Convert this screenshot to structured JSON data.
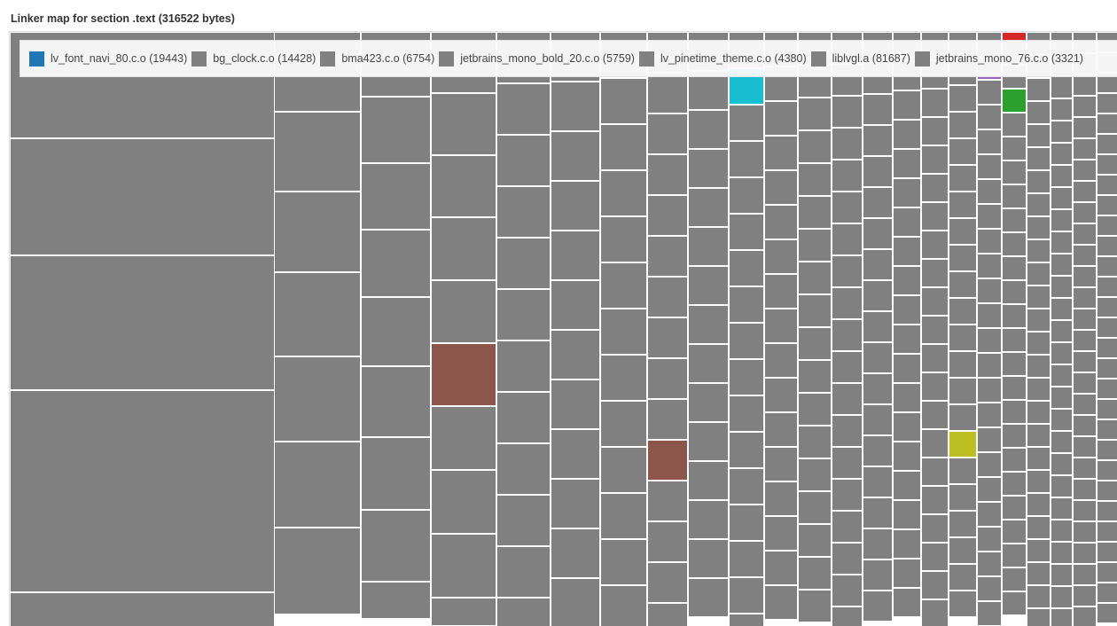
{
  "title": "Linker map for section .text (316522 bytes)",
  "legend": [
    {
      "label": "lv_font_navi_80.c.o (19443)",
      "color": "#1f77b4"
    },
    {
      "label": "bg_clock.c.o (14428)",
      "color": "#808080"
    },
    {
      "label": "bma423.c.o (6754)",
      "color": "#808080"
    },
    {
      "label": "jetbrains_mono_bold_20.c.o (5759)",
      "color": "#808080"
    },
    {
      "label": "lv_pinetime_theme.c.o (4380)",
      "color": "#808080"
    },
    {
      "label": "liblvgl.a (81687)",
      "color": "#808080"
    },
    {
      "label": "jetbrains_mono_76.c.o (3321)",
      "color": "#808080"
    }
  ],
  "chart_data": {
    "type": "treemap",
    "title": "Linker map for section .text (316522 bytes)",
    "total_bytes": 316522,
    "default_color": "#808080",
    "highlight_colors": [
      "#8c564b",
      "#17becf",
      "#bcbd22",
      "#2ca02c",
      "#d62728",
      "#9467bd"
    ]
  }
}
